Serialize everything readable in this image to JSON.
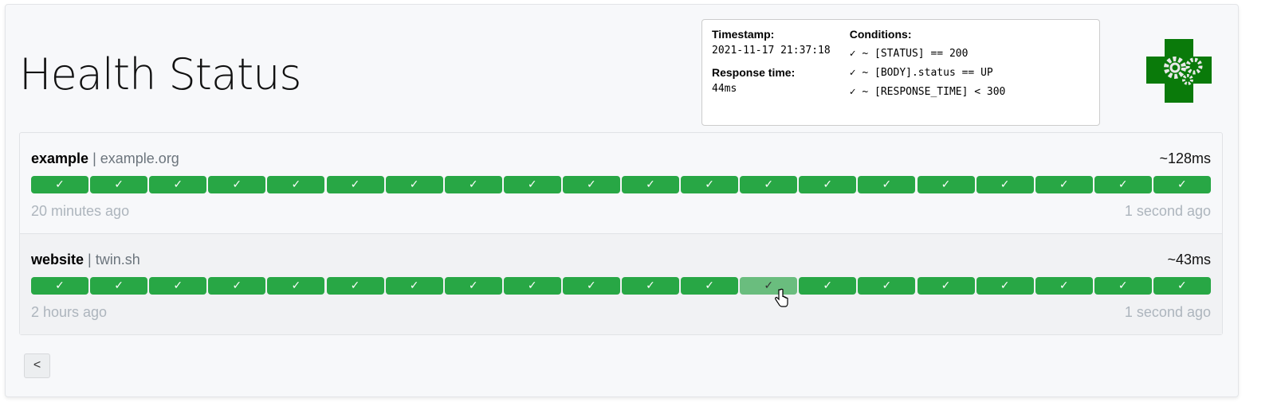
{
  "header": {
    "title": "Health Status",
    "logo": "health-gears-cross-logo"
  },
  "colors": {
    "success": "#28a745",
    "hovered": "#6abd7e",
    "logo": "#0a7a0a"
  },
  "services": [
    {
      "name": "example",
      "url": "example.org",
      "avg_response": "~128ms",
      "oldest": "20 minutes ago",
      "newest": "1 second ago",
      "results": [
        "✓",
        "✓",
        "✓",
        "✓",
        "✓",
        "✓",
        "✓",
        "✓",
        "✓",
        "✓",
        "✓",
        "✓",
        "✓",
        "✓",
        "✓",
        "✓",
        "✓",
        "✓",
        "✓",
        "✓"
      ]
    },
    {
      "name": "website",
      "url": "twin.sh",
      "avg_response": "~43ms",
      "oldest": "2 hours ago",
      "newest": "1 second ago",
      "results": [
        "✓",
        "✓",
        "✓",
        "✓",
        "✓",
        "✓",
        "✓",
        "✓",
        "✓",
        "✓",
        "✓",
        "✓",
        "✓",
        "✓",
        "✓",
        "✓",
        "✓",
        "✓",
        "✓",
        "✓"
      ],
      "hovered_index": 12
    }
  ],
  "separator": "|",
  "tooltip": {
    "timestamp_label": "Timestamp:",
    "timestamp": "2021-11-17 21:37:18",
    "response_label": "Response time:",
    "response": "44ms",
    "conditions_label": "Conditions:",
    "conditions": [
      "✓ ~ [STATUS] == 200",
      "✓ ~ [BODY].status == UP",
      "✓ ~ [RESPONSE_TIME] < 300"
    ]
  },
  "pagination": {
    "prev_label": "<"
  }
}
